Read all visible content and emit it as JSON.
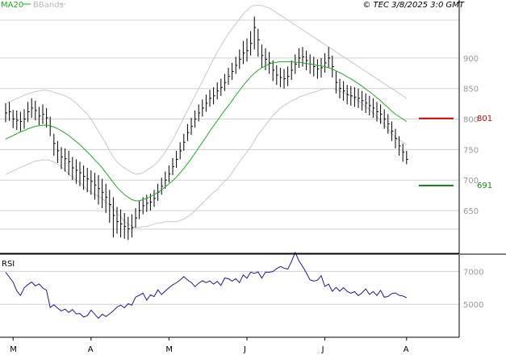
{
  "header": {
    "legend_ma": "MA20",
    "legend_bb": "BBands",
    "copyright": "© TEC 3/8/2025 3:0 GMT"
  },
  "colors": {
    "ma": "#22aa22",
    "bbands": "#c8c8c8",
    "bars": "#000000",
    "rsi": "#1a1aa0",
    "resistance": "#cc0000",
    "support": "#118811",
    "grid": "#d0d0d0",
    "right_label_text": "#999999"
  },
  "chart_data": [
    {
      "type": "line",
      "title": "",
      "legend": [
        "MA20",
        "BBands"
      ],
      "legend_placement": "top-left",
      "y_ticks": [
        650,
        700,
        750,
        800,
        850,
        900
      ],
      "ylim": [
        580,
        995
      ],
      "x_month_labels": [
        {
          "label": "M",
          "index": 2
        },
        {
          "label": "A",
          "index": 23
        },
        {
          "label": "M",
          "index": 44
        },
        {
          "label": "J",
          "index": 65
        },
        {
          "label": "J",
          "index": 86
        },
        {
          "label": "A",
          "index": 108
        }
      ],
      "n_bars": 109,
      "series": [
        {
          "name": "Price",
          "style": "ohlc-ticks",
          "values": [
            810,
            812,
            800,
            798,
            796,
            800,
            812,
            818,
            814,
            805,
            808,
            802,
            788,
            760,
            748,
            738,
            735,
            730,
            720,
            716,
            712,
            706,
            702,
            698,
            692,
            686,
            680,
            672,
            660,
            642,
            632,
            628,
            624,
            620,
            622,
            638,
            650,
            658,
            662,
            664,
            670,
            680,
            690,
            700,
            710,
            722,
            734,
            748,
            762,
            778,
            788,
            800,
            810,
            818,
            826,
            834,
            838,
            846,
            852,
            860,
            870,
            878,
            888,
            898,
            908,
            912,
            924,
            950,
            930,
            904,
            898,
            892,
            880,
            872,
            868,
            866,
            870,
            880,
            890,
            900,
            902,
            896,
            890,
            886,
            882,
            884,
            892,
            900,
            886,
            860,
            850,
            846,
            840,
            838,
            836,
            834,
            830,
            826,
            822,
            818,
            812,
            808,
            800,
            792,
            780,
            768,
            756,
            746,
            734
          ],
          "lows": [
            795,
            797,
            785,
            782,
            780,
            784,
            795,
            802,
            798,
            790,
            792,
            786,
            772,
            740,
            728,
            718,
            714,
            708,
            700,
            694,
            690,
            684,
            680,
            676,
            668,
            660,
            654,
            646,
            630,
            606,
            612,
            606,
            604,
            602,
            606,
            622,
            636,
            644,
            648,
            650,
            656,
            666,
            676,
            686,
            696,
            708,
            720,
            734,
            748,
            764,
            774,
            786,
            796,
            804,
            812,
            820,
            824,
            832,
            838,
            846,
            856,
            864,
            874,
            882,
            890,
            894,
            904,
            914,
            902,
            884,
            880,
            874,
            862,
            856,
            852,
            850,
            854,
            864,
            874,
            884,
            886,
            880,
            874,
            870,
            866,
            868,
            876,
            884,
            868,
            842,
            834,
            830,
            824,
            822,
            820,
            818,
            814,
            810,
            806,
            802,
            796,
            792,
            784,
            776,
            764,
            752,
            740,
            730,
            726
          ],
          "highs": [
            826,
            828,
            815,
            814,
            812,
            816,
            828,
            834,
            830,
            820,
            824,
            818,
            804,
            776,
            764,
            754,
            752,
            748,
            738,
            734,
            730,
            724,
            720,
            716,
            712,
            708,
            702,
            694,
            684,
            672,
            656,
            652,
            646,
            640,
            644,
            654,
            666,
            672,
            676,
            678,
            684,
            694,
            704,
            714,
            724,
            736,
            748,
            762,
            776,
            792,
            802,
            814,
            824,
            832,
            840,
            848,
            852,
            860,
            866,
            874,
            884,
            892,
            902,
            914,
            928,
            932,
            944,
            968,
            948,
            922,
            916,
            910,
            896,
            888,
            884,
            882,
            886,
            896,
            906,
            916,
            918,
            912,
            906,
            902,
            898,
            900,
            908,
            918,
            904,
            878,
            866,
            862,
            856,
            854,
            852,
            850,
            846,
            842,
            838,
            834,
            828,
            824,
            816,
            808,
            796,
            784,
            772,
            760,
            748
          ]
        },
        {
          "name": "MA20",
          "values": [
            767,
            770,
            773,
            776,
            779,
            781,
            784,
            786,
            788,
            789,
            790,
            790,
            789,
            787,
            784,
            781,
            777,
            773,
            768,
            763,
            758,
            752,
            746,
            740,
            733,
            727,
            720,
            712,
            704,
            696,
            688,
            682,
            676,
            672,
            668,
            666,
            666,
            668,
            670,
            673,
            676,
            680,
            684,
            689,
            694,
            699,
            705,
            712,
            719,
            727,
            735,
            744,
            753,
            762,
            771,
            780,
            789,
            797,
            806,
            814,
            822,
            830,
            839,
            847,
            855,
            862,
            869,
            875,
            880,
            884,
            887,
            890,
            892,
            893,
            894,
            894,
            894,
            894,
            893,
            893,
            892,
            891,
            890,
            889,
            888,
            887,
            886,
            884,
            882,
            879,
            876,
            873,
            869,
            866,
            862,
            858,
            854,
            849,
            845,
            840,
            835,
            830,
            824,
            819,
            813,
            808,
            804,
            800,
            796
          ]
        },
        {
          "name": "BBands upper",
          "values": [
            825,
            828,
            831,
            834,
            836,
            839,
            841,
            843,
            845,
            846,
            847,
            847,
            846,
            844,
            842,
            840,
            838,
            835,
            831,
            826,
            820,
            814,
            808,
            800,
            790,
            780,
            770,
            760,
            748,
            738,
            730,
            724,
            720,
            716,
            712,
            710,
            710,
            712,
            716,
            720,
            724,
            730,
            738,
            746,
            756,
            766,
            778,
            790,
            802,
            814,
            826,
            838,
            850,
            862,
            874,
            886,
            898,
            910,
            920,
            930,
            940,
            948,
            956,
            964,
            972,
            978,
            984,
            986,
            986,
            986,
            984,
            982,
            978,
            974,
            970,
            966,
            962,
            958,
            954,
            950,
            946,
            942,
            938,
            934,
            930,
            926,
            922,
            918,
            914,
            910,
            906,
            902,
            898,
            894,
            890,
            886,
            882,
            878,
            874,
            870,
            866,
            862,
            858,
            854,
            850,
            846,
            842,
            838,
            834
          ]
        },
        {
          "name": "BBands lower",
          "values": [
            709,
            712,
            715,
            718,
            721,
            723,
            726,
            729,
            731,
            732,
            733,
            733,
            732,
            730,
            726,
            722,
            716,
            710,
            705,
            700,
            696,
            690,
            684,
            680,
            676,
            674,
            670,
            664,
            660,
            654,
            646,
            640,
            632,
            628,
            624,
            622,
            622,
            624,
            624,
            626,
            628,
            630,
            630,
            632,
            632,
            632,
            632,
            634,
            636,
            640,
            644,
            650,
            656,
            662,
            668,
            674,
            680,
            684,
            692,
            698,
            704,
            712,
            722,
            730,
            738,
            746,
            754,
            764,
            774,
            782,
            790,
            798,
            806,
            812,
            818,
            822,
            826,
            830,
            832,
            836,
            838,
            840,
            842,
            844,
            846,
            848,
            850,
            850,
            850,
            848,
            846,
            844,
            840,
            838,
            834,
            830,
            826,
            820,
            816,
            810,
            804,
            798,
            790,
            784,
            776,
            770,
            766,
            762,
            758
          ]
        }
      ],
      "levels": [
        {
          "name": "resistance",
          "value": 801,
          "label": "801"
        },
        {
          "name": "support",
          "value": 691,
          "label": "691"
        }
      ]
    },
    {
      "type": "line",
      "title": "RSI",
      "y_ticks": [
        5000,
        7000
      ],
      "ylim": [
        3000,
        8000
      ],
      "series": [
        {
          "name": "RSI",
          "values": [
            6950,
            6650,
            6350,
            5820,
            5540,
            6000,
            6200,
            6360,
            6120,
            6240,
            5990,
            5860,
            4810,
            4970,
            4770,
            4600,
            4710,
            4510,
            4680,
            4420,
            4440,
            4230,
            4310,
            4650,
            4400,
            4150,
            4400,
            4260,
            4420,
            4610,
            4830,
            4950,
            4790,
            5040,
            4950,
            5440,
            5550,
            5680,
            5250,
            5580,
            5470,
            5880,
            5600,
            5810,
            6010,
            6180,
            6310,
            6480,
            6680,
            6480,
            6330,
            6080,
            6280,
            6430,
            6320,
            6420,
            6230,
            6390,
            6150,
            6600,
            6560,
            6410,
            6560,
            6320,
            6790,
            6590,
            6950,
            6880,
            6970,
            6590,
            6950,
            6950,
            6990,
            7170,
            7300,
            7200,
            7140,
            7600,
            8150,
            7650,
            7300,
            6910,
            6480,
            6410,
            6470,
            6740,
            6090,
            6230,
            5790,
            6030,
            5800,
            6010,
            5790,
            5670,
            5770,
            5530,
            5700,
            5940,
            5600,
            5780,
            5540,
            5850,
            5430,
            5480,
            5650,
            5690,
            5550,
            5510,
            5400
          ]
        }
      ]
    }
  ]
}
